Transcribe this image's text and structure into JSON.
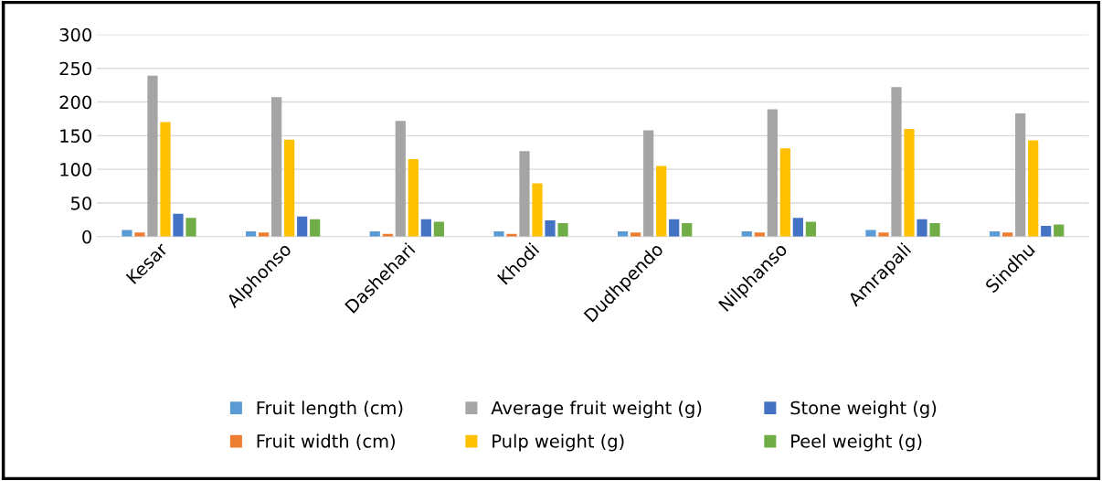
{
  "chart_data": {
    "type": "bar",
    "categories": [
      "Kesar",
      "Alphonso",
      "Dashehari",
      "Khodi",
      "Dudhpendo",
      "Nilphanso",
      "Amrapali",
      "Sindhu"
    ],
    "series": [
      {
        "name": "Fruit length (cm)",
        "color": "#5b9bd5",
        "values": [
          10,
          8,
          8,
          8,
          8,
          8,
          10,
          8
        ]
      },
      {
        "name": "Fruit width (cm)",
        "color": "#ed7d31",
        "values": [
          6,
          6,
          4,
          4,
          6,
          6,
          6,
          6
        ]
      },
      {
        "name": "Average fruit weight (g)",
        "color": "#a5a5a5",
        "values": [
          239,
          207,
          172,
          127,
          158,
          189,
          222,
          183
        ]
      },
      {
        "name": "Pulp weight (g)",
        "color": "#ffc000",
        "values": [
          170,
          144,
          115,
          79,
          105,
          131,
          160,
          143
        ]
      },
      {
        "name": "Stone weight (g)",
        "color": "#4472c4",
        "values": [
          34,
          30,
          26,
          24,
          26,
          28,
          26,
          16
        ]
      },
      {
        "name": "Peel weight (g)",
        "color": "#70ad47",
        "values": [
          28,
          26,
          22,
          20,
          20,
          22,
          20,
          18
        ]
      }
    ],
    "ylim": [
      0,
      300
    ],
    "yticks": [
      0,
      50,
      100,
      150,
      200,
      250,
      300
    ],
    "grid": "y",
    "legend": "bottom"
  }
}
